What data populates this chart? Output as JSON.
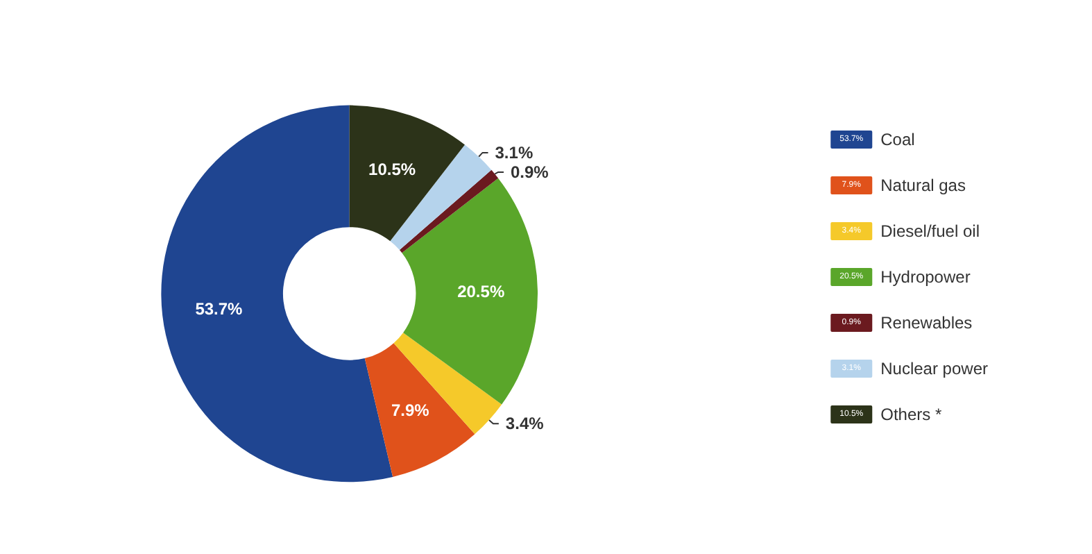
{
  "chart_data": {
    "type": "donut",
    "categories": [
      "Coal",
      "Natural gas",
      "Diesel/fuel oil",
      "Hydropower",
      "Renewables",
      "Nuclear power",
      "Others *"
    ],
    "values": [
      53.7,
      7.9,
      3.4,
      20.5,
      0.9,
      3.1,
      10.5
    ],
    "value_labels": [
      "53.7%",
      "7.9%",
      "3.4%",
      "20.5%",
      "0.9%",
      "3.1%",
      "10.5%"
    ],
    "colors": [
      "#1f4591",
      "#e0521b",
      "#f5c92a",
      "#5aa62a",
      "#6b1a1f",
      "#b5d3ec",
      "#2c3319"
    ],
    "legend": "right"
  }
}
